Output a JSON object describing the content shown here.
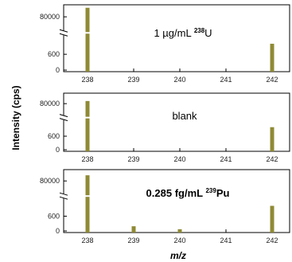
{
  "chart_data": {
    "type": "bar",
    "ylabel": "Intensity (cps)",
    "xlabel": "m/z",
    "x_ticks": [
      238,
      239,
      240,
      241,
      242
    ],
    "y_ticks": [
      "0",
      "600",
      "80000"
    ],
    "bar_color": "#8f8a34",
    "panels": [
      {
        "annotation": {
          "pre": "1 µg/mL ",
          "sup": "238",
          "post": "U"
        },
        "bars": [
          {
            "x": 238,
            "value": 95000,
            "broken_axis": true
          },
          {
            "x": 242,
            "value": 1000
          }
        ]
      },
      {
        "annotation": {
          "pre": "blank",
          "sup": "",
          "post": ""
        },
        "bars": [
          {
            "x": 238,
            "value": 85000,
            "broken_axis": true
          },
          {
            "x": 242,
            "value": 1000
          }
        ]
      },
      {
        "annotation": {
          "pre": "0.285 fg/mL ",
          "sup": "239",
          "post": "Pu"
        },
        "bars": [
          {
            "x": 238,
            "value": 90000,
            "broken_axis": true
          },
          {
            "x": 239,
            "value": 190
          },
          {
            "x": 240,
            "value": 70
          },
          {
            "x": 242,
            "value": 1020
          }
        ]
      }
    ]
  }
}
